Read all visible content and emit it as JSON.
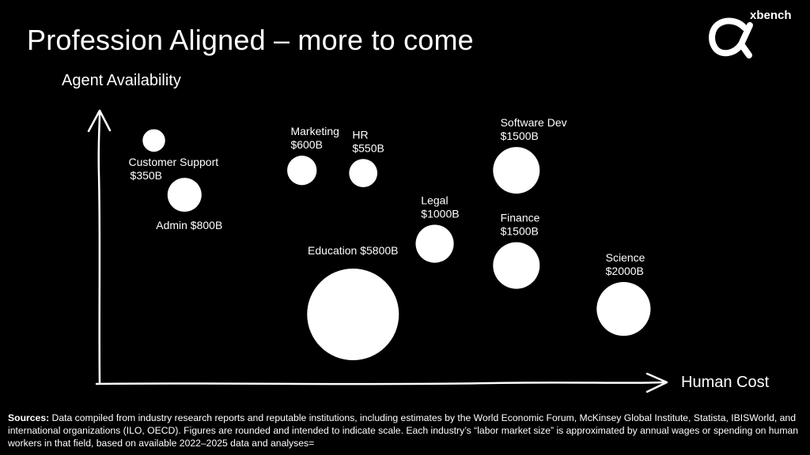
{
  "slide": {
    "title": "Profession Aligned – more to come",
    "brand": "xbench"
  },
  "chart_data": {
    "type": "bubble",
    "title": "Profession Aligned – more to come",
    "xlabel": "Human Cost",
    "ylabel": "Agent Availability",
    "size_label": "labor market size",
    "unit": "$B",
    "axes_ticks": false,
    "legend": "none",
    "points": [
      {
        "name": "Customer Support",
        "value_label": "$350B",
        "size": 350,
        "x": 1.0,
        "y": 8.9
      },
      {
        "name": "Admin",
        "value_label": "$800B",
        "size": 800,
        "x": 1.6,
        "y": 6.9
      },
      {
        "name": "Marketing",
        "value_label": "$600B",
        "size": 600,
        "x": 3.9,
        "y": 7.8
      },
      {
        "name": "HR",
        "value_label": "$550B",
        "size": 550,
        "x": 5.1,
        "y": 7.7
      },
      {
        "name": "Education",
        "value_label": "$5800B",
        "size": 5800,
        "x": 4.9,
        "y": 2.5
      },
      {
        "name": "Legal",
        "value_label": "$1000B",
        "size": 1000,
        "x": 6.5,
        "y": 5.1
      },
      {
        "name": "Software Dev",
        "value_label": "$1500B",
        "size": 1500,
        "x": 8.1,
        "y": 7.8
      },
      {
        "name": "Finance",
        "value_label": "$1500B",
        "size": 1500,
        "x": 8.1,
        "y": 4.3
      },
      {
        "name": "Science",
        "value_label": "$2000B",
        "size": 2000,
        "x": 10.2,
        "y": 2.7
      }
    ]
  },
  "sources": {
    "label": "Sources:",
    "text": " Data compiled from industry research reports and reputable institutions, including estimates by the World Economic Forum, McKinsey Global Institute, Statista, IBISWorld, and international organizations (ILO, OECD). Figures are rounded and intended to indicate scale. Each industry’s “labor market size” is approximated by annual wages or spending on human workers in that field, based on available 2022–2025 data and analyses="
  }
}
